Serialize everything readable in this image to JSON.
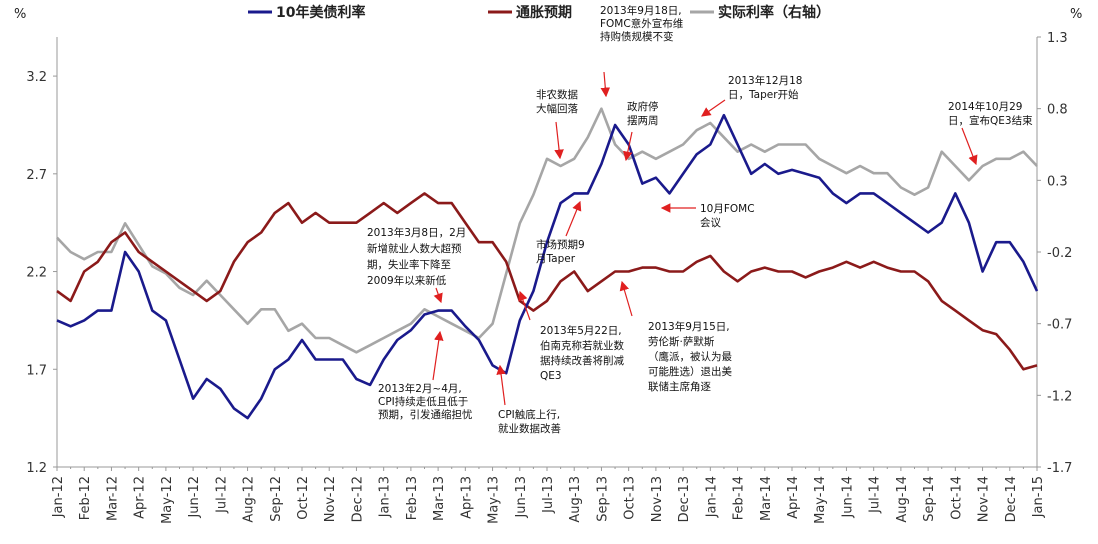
{
  "chart_data": {
    "type": "line",
    "left_unit": "%",
    "right_unit": "%",
    "categories": [
      "Jan-12",
      null,
      "Feb-12",
      null,
      "Mar-12",
      null,
      "Apr-12",
      null,
      "May-12",
      null,
      "Jun-12",
      null,
      "Jul-12",
      null,
      "Aug-12",
      null,
      "Sep-12",
      null,
      "Oct-12",
      null,
      "Nov-12",
      null,
      "Dec-12",
      null,
      "Jan-13",
      null,
      "Feb-13",
      null,
      "Mar-13",
      null,
      "Apr-13",
      null,
      "May-13",
      null,
      "Jun-13",
      null,
      "Jul-13",
      null,
      "Aug-13",
      null,
      "Sep-13",
      null,
      "Oct-13",
      null,
      "Nov-13",
      null,
      "Dec-13",
      null,
      "Jan-14",
      null,
      "Feb-14",
      null,
      "Mar-14",
      null,
      "Apr-14",
      null,
      "May-14",
      null,
      "Jun-14",
      null,
      "Jul-14",
      null,
      "Aug-14",
      null,
      "Sep-14",
      null,
      "Oct-14",
      null,
      "Nov-14",
      null,
      "Dec-14",
      null,
      "Jan-15"
    ],
    "series": [
      {
        "name": "10年美债利率",
        "color": "#1a1a8c",
        "axis": "y",
        "values": [
          1.95,
          1.92,
          1.95,
          2.0,
          2.0,
          2.3,
          2.2,
          2.0,
          1.95,
          1.75,
          1.55,
          1.65,
          1.6,
          1.5,
          1.45,
          1.55,
          1.7,
          1.75,
          1.85,
          1.75,
          1.75,
          1.75,
          1.65,
          1.62,
          1.75,
          1.85,
          1.9,
          1.98,
          2.0,
          2.0,
          1.92,
          1.85,
          1.72,
          1.68,
          1.95,
          2.1,
          2.35,
          2.55,
          2.6,
          2.6,
          2.75,
          2.95,
          2.85,
          2.65,
          2.68,
          2.6,
          2.7,
          2.8,
          2.85,
          3.0,
          2.85,
          2.7,
          2.75,
          2.7,
          2.72,
          2.7,
          2.68,
          2.6,
          2.55,
          2.6,
          2.6,
          2.55,
          2.5,
          2.45,
          2.4,
          2.45,
          2.6,
          2.45,
          2.2,
          2.35,
          2.35,
          2.25,
          2.1
        ]
      },
      {
        "name": "通胀预期",
        "color": "#8b1a1a",
        "axis": "y",
        "values": [
          2.1,
          2.05,
          2.2,
          2.25,
          2.35,
          2.4,
          2.3,
          2.25,
          2.2,
          2.15,
          2.1,
          2.05,
          2.1,
          2.25,
          2.35,
          2.4,
          2.5,
          2.55,
          2.45,
          2.5,
          2.45,
          2.45,
          2.45,
          2.5,
          2.55,
          2.5,
          2.55,
          2.6,
          2.55,
          2.55,
          2.45,
          2.35,
          2.35,
          2.25,
          2.05,
          2.0,
          2.05,
          2.15,
          2.2,
          2.1,
          2.15,
          2.2,
          2.2,
          2.22,
          2.22,
          2.2,
          2.2,
          2.25,
          2.28,
          2.2,
          2.15,
          2.2,
          2.22,
          2.2,
          2.2,
          2.17,
          2.2,
          2.22,
          2.25,
          2.22,
          2.25,
          2.22,
          2.2,
          2.2,
          2.15,
          2.05,
          2.0,
          1.95,
          1.9,
          1.88,
          1.8,
          1.7,
          1.72
        ]
      },
      {
        "name": "实际利率（右轴）",
        "color": "#a6a6a6",
        "axis": "y2",
        "values": [
          -0.1,
          -0.2,
          -0.25,
          -0.2,
          -0.2,
          0.0,
          -0.15,
          -0.3,
          -0.35,
          -0.45,
          -0.5,
          -0.4,
          -0.5,
          -0.6,
          -0.7,
          -0.6,
          -0.6,
          -0.75,
          -0.7,
          -0.8,
          -0.8,
          -0.85,
          -0.9,
          -0.85,
          -0.8,
          -0.75,
          -0.7,
          -0.6,
          -0.65,
          -0.7,
          -0.75,
          -0.8,
          -0.7,
          -0.35,
          0.0,
          0.2,
          0.45,
          0.4,
          0.45,
          0.6,
          0.8,
          0.55,
          0.45,
          0.5,
          0.45,
          0.5,
          0.55,
          0.65,
          0.7,
          0.6,
          0.5,
          0.55,
          0.5,
          0.55,
          0.55,
          0.55,
          0.45,
          0.4,
          0.35,
          0.4,
          0.35,
          0.35,
          0.25,
          0.2,
          0.25,
          0.5,
          0.4,
          0.3,
          0.4,
          0.45,
          0.45,
          0.5,
          0.4
        ]
      }
    ],
    "ylim": [
      1.2,
      3.4
    ],
    "yticks": [
      1.2,
      1.7,
      2.2,
      2.7,
      3.2
    ],
    "y2lim": [
      -1.7,
      1.3
    ],
    "y2ticks": [
      -1.7,
      -1.2,
      -0.7,
      -0.2,
      0.3,
      0.8,
      1.3
    ],
    "annotations": [
      [
        "2013年9月18日,",
        "FOMC意外宣布维",
        "持购债规模不变"
      ],
      [
        "非农数据",
        "大幅回落"
      ],
      [
        "政府停",
        "摆两周"
      ],
      [
        "2013年12月18",
        "日，Taper开始"
      ],
      [
        "2014年10月29",
        "日，宣布QE3结束"
      ],
      [
        "10月FOMC",
        "会议"
      ],
      [
        "市场预期9",
        "月Taper"
      ],
      [
        "2013年3月8日，2月",
        "新增就业人数大超预",
        "期，失业率下降至",
        "2009年以来新低"
      ],
      [
        "2013年5月22日,",
        "伯南克称若就业数",
        "据持续改善将削减",
        "QE3"
      ],
      [
        "2013年9月15日,",
        "劳伦斯·萨默斯",
        "（鹰派，被认为最",
        "可能胜选）退出美",
        "联储主席角逐"
      ],
      [
        "2013年2月~4月,",
        "CPI持续走低且低于",
        "预期，引发通缩担忧"
      ],
      [
        "CPI触底上行,",
        "就业数据改善"
      ]
    ]
  }
}
